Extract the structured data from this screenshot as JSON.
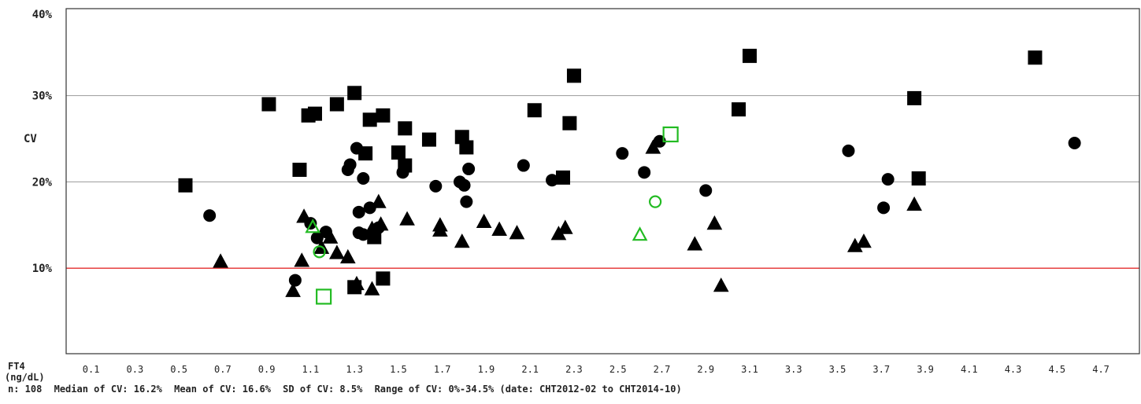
{
  "chart_data": {
    "type": "scatter",
    "title": "",
    "xlabel": "FT4",
    "xunit": "(ng/dL)",
    "ylabel": "CV",
    "xlim": [
      0.0,
      4.7
    ],
    "ylim": [
      0,
      40
    ],
    "x_ticks": [
      "0.1",
      "0.3",
      "0.5",
      "0.7",
      "0.9",
      "1.1",
      "1.3",
      "1.5",
      "1.7",
      "1.9",
      "2.1",
      "2.3",
      "2.5",
      "2.7",
      "2.9",
      "3.1",
      "3.3",
      "3.5",
      "3.7",
      "3.9",
      "4.1",
      "4.3",
      "4.5",
      "4.7"
    ],
    "y_ticks": [
      {
        "value": 10,
        "label": "10%"
      },
      {
        "value": 20,
        "label": "20%"
      },
      {
        "value": 30,
        "label": "30%"
      },
      {
        "value": 40,
        "label": "40%"
      }
    ],
    "gridlines": [
      20,
      30
    ],
    "reference_line": {
      "value": 10,
      "color": "#dd0000"
    },
    "colors": {
      "filled": "#000000",
      "open": "#22bb22",
      "grid": "#999999",
      "axis": "#333333"
    },
    "series": [
      {
        "shape": "square",
        "fill": "filled",
        "points": [
          [
            0.53,
            19.6
          ],
          [
            0.91,
            29.0
          ],
          [
            1.05,
            21.4
          ],
          [
            1.09,
            27.7
          ],
          [
            1.12,
            27.9
          ],
          [
            1.22,
            29.0
          ],
          [
            1.3,
            30.3
          ],
          [
            1.35,
            23.3
          ],
          [
            1.37,
            27.2
          ],
          [
            1.43,
            27.7
          ],
          [
            1.39,
            13.6
          ],
          [
            1.43,
            8.8
          ],
          [
            1.3,
            7.8
          ],
          [
            1.5,
            23.4
          ],
          [
            1.53,
            26.2
          ],
          [
            1.53,
            21.9
          ],
          [
            1.64,
            24.9
          ],
          [
            1.79,
            25.2
          ],
          [
            1.81,
            24.0
          ],
          [
            2.12,
            28.3
          ],
          [
            2.25,
            20.5
          ],
          [
            2.28,
            26.8
          ],
          [
            2.3,
            32.3
          ],
          [
            3.05,
            28.4
          ],
          [
            3.1,
            34.6
          ],
          [
            3.85,
            29.7
          ],
          [
            3.87,
            20.4
          ],
          [
            4.4,
            34.4
          ]
        ]
      },
      {
        "shape": "circle",
        "fill": "filled",
        "points": [
          [
            0.64,
            16.1
          ],
          [
            1.03,
            8.6
          ],
          [
            1.1,
            15.2
          ],
          [
            1.13,
            13.5
          ],
          [
            1.17,
            14.2
          ],
          [
            1.27,
            21.4
          ],
          [
            1.28,
            22.0
          ],
          [
            1.31,
            23.9
          ],
          [
            1.32,
            16.5
          ],
          [
            1.32,
            14.1
          ],
          [
            1.34,
            20.4
          ],
          [
            1.34,
            13.9
          ],
          [
            1.37,
            17.0
          ],
          [
            1.41,
            14.7
          ],
          [
            1.52,
            21.1
          ],
          [
            1.67,
            19.5
          ],
          [
            1.78,
            20.0
          ],
          [
            1.8,
            19.6
          ],
          [
            1.82,
            21.5
          ],
          [
            1.81,
            17.7
          ],
          [
            2.07,
            21.9
          ],
          [
            2.2,
            20.2
          ],
          [
            2.52,
            23.3
          ],
          [
            2.62,
            21.1
          ],
          [
            2.69,
            24.7
          ],
          [
            2.9,
            19.0
          ],
          [
            3.55,
            23.6
          ],
          [
            3.71,
            17.0
          ],
          [
            3.73,
            20.3
          ],
          [
            4.58,
            24.5
          ]
        ]
      },
      {
        "shape": "triangle",
        "fill": "filled",
        "points": [
          [
            0.69,
            10.8
          ],
          [
            1.02,
            7.4
          ],
          [
            1.06,
            10.9
          ],
          [
            1.07,
            16.0
          ],
          [
            1.15,
            12.4
          ],
          [
            1.19,
            13.6
          ],
          [
            1.22,
            11.8
          ],
          [
            1.27,
            11.3
          ],
          [
            1.31,
            8.2
          ],
          [
            1.38,
            7.6
          ],
          [
            1.38,
            14.6
          ],
          [
            1.41,
            17.7
          ],
          [
            1.42,
            15.1
          ],
          [
            1.54,
            15.7
          ],
          [
            1.69,
            15.0
          ],
          [
            1.69,
            14.4
          ],
          [
            1.79,
            13.1
          ],
          [
            1.89,
            15.4
          ],
          [
            1.96,
            14.5
          ],
          [
            2.04,
            14.1
          ],
          [
            2.23,
            14.0
          ],
          [
            2.26,
            14.7
          ],
          [
            2.66,
            24.0
          ],
          [
            2.85,
            12.8
          ],
          [
            2.94,
            15.2
          ],
          [
            2.97,
            8.0
          ],
          [
            3.58,
            12.6
          ],
          [
            3.62,
            13.1
          ],
          [
            3.85,
            17.4
          ]
        ]
      },
      {
        "shape": "square",
        "fill": "open",
        "points": [
          [
            1.16,
            6.7
          ],
          [
            2.74,
            25.5
          ]
        ]
      },
      {
        "shape": "circle",
        "fill": "open",
        "points": [
          [
            1.14,
            11.9
          ],
          [
            2.67,
            17.7
          ]
        ]
      },
      {
        "shape": "triangle",
        "fill": "open",
        "points": [
          [
            1.11,
            14.8
          ],
          [
            2.6,
            13.9
          ]
        ]
      }
    ]
  },
  "stats": {
    "n": "n: 108",
    "median": "Median of CV: 16.2%",
    "mean": "Mean of CV: 16.6%",
    "sd": "SD of CV: 8.5%",
    "range": "Range of CV: 0%-34.5% (date: CHT2012-02 to CHT2014-10)"
  }
}
